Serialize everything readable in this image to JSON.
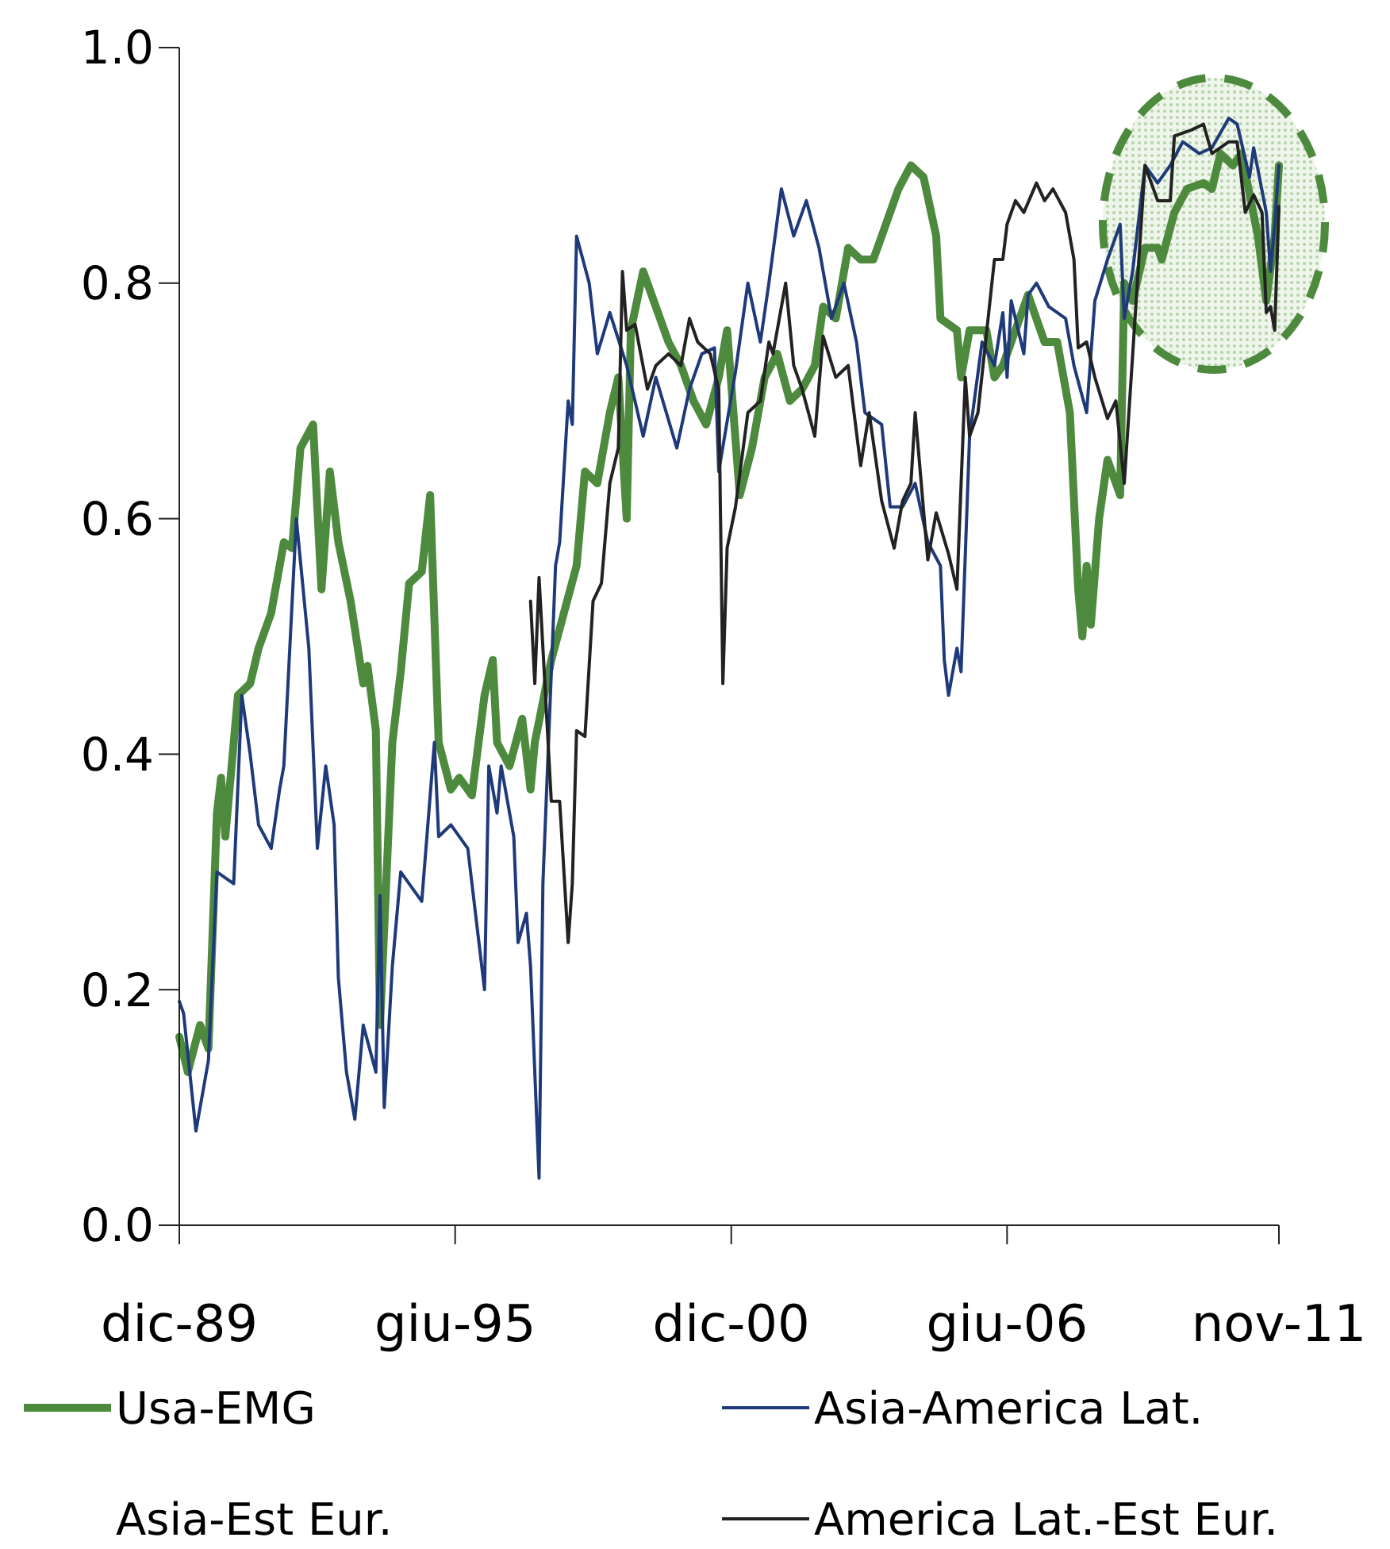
{
  "chart_data": {
    "type": "line",
    "xlim": [
      "1989-12",
      "2011-11"
    ],
    "xticks": [
      {
        "value": "1989-12",
        "label": "dic-89"
      },
      {
        "value": "1995-06",
        "label": "giu-95"
      },
      {
        "value": "2000-12",
        "label": "dic-00"
      },
      {
        "value": "2006-06",
        "label": "giu-06"
      },
      {
        "value": "2011-11",
        "label": "nov-11"
      }
    ],
    "ylim": [
      0,
      1
    ],
    "yticks": [
      {
        "value": 0,
        "label": "0.0"
      },
      0.2,
      0.4,
      0.6,
      0.8,
      {
        "value": 1,
        "label": "1.0"
      }
    ],
    "grid": false,
    "legend": "bottom",
    "series": [
      {
        "name": "Usa-EMG",
        "color": "#4e8a3e",
        "x": [
          "1989-12",
          "1990-02",
          "1990-05",
          "1990-07",
          "1990-09",
          "1990-10",
          "1990-11",
          "1991-02",
          "1991-05",
          "1991-07",
          "1991-10",
          "1992-01",
          "1992-03",
          "1992-05",
          "1992-08",
          "1992-10",
          "1992-12",
          "1993-02",
          "1993-05",
          "1993-08",
          "1993-09",
          "1993-11",
          "1993-12",
          "1994-03",
          "1994-05",
          "1994-07",
          "1994-10",
          "1994-12",
          "1995-02",
          "1995-05",
          "1995-07",
          "1995-10",
          "1996-01",
          "1996-03",
          "1996-04",
          "1996-07",
          "1996-10",
          "1996-12",
          "1997-01",
          "1997-05",
          "1997-08",
          "1997-11",
          "1998-01",
          "1998-04",
          "1998-07",
          "1998-09",
          "1998-11",
          "1998-12",
          "1999-03",
          "1999-06",
          "1999-09",
          "1999-12",
          "2000-03",
          "2000-06",
          "2000-09",
          "2000-11",
          "2001-02",
          "2001-05",
          "2001-08",
          "2001-11",
          "2002-02",
          "2002-05",
          "2002-08",
          "2002-10",
          "2003-01",
          "2003-04",
          "2003-07",
          "2003-10",
          "2004-01",
          "2004-04",
          "2004-07",
          "2004-10",
          "2005-01",
          "2005-02",
          "2005-06",
          "2005-07",
          "2005-09",
          "2006-01",
          "2006-03",
          "2006-05",
          "2006-11",
          "2007-03",
          "2007-06",
          "2007-09",
          "2007-11",
          "2007-12",
          "2008-01",
          "2008-02",
          "2008-04",
          "2008-06",
          "2008-09",
          "2008-10",
          "2008-12",
          "2009-03",
          "2009-06",
          "2009-07",
          "2009-10",
          "2010-01",
          "2010-05",
          "2010-07",
          "2010-09",
          "2010-12",
          "2011-02",
          "2011-06",
          "2011-08",
          "2011-10",
          "2011-11"
        ],
        "values": [
          0.16,
          0.13,
          0.17,
          0.15,
          0.35,
          0.38,
          0.33,
          0.45,
          0.46,
          0.49,
          0.52,
          0.58,
          0.575,
          0.66,
          0.68,
          0.54,
          0.64,
          0.58,
          0.53,
          0.46,
          0.475,
          0.42,
          0.17,
          0.41,
          0.47,
          0.545,
          0.555,
          0.62,
          0.41,
          0.37,
          0.38,
          0.365,
          0.45,
          0.48,
          0.41,
          0.39,
          0.43,
          0.37,
          0.41,
          0.48,
          0.52,
          0.56,
          0.64,
          0.63,
          0.69,
          0.72,
          0.6,
          0.76,
          0.81,
          0.78,
          0.75,
          0.73,
          0.7,
          0.68,
          0.72,
          0.76,
          0.62,
          0.66,
          0.72,
          0.74,
          0.7,
          0.71,
          0.73,
          0.78,
          0.77,
          0.83,
          0.82,
          0.82,
          0.85,
          0.88,
          0.9,
          0.89,
          0.84,
          0.77,
          0.76,
          0.72,
          0.76,
          0.76,
          0.72,
          0.73,
          0.79,
          0.75,
          0.75,
          0.69,
          0.54,
          0.5,
          0.56,
          0.51,
          0.6,
          0.65,
          0.62,
          0.8,
          0.785,
          0.83,
          0.83,
          0.82,
          0.86,
          0.88,
          0.885,
          0.88,
          0.91,
          0.9,
          0.91,
          0.84,
          0.785,
          0.84,
          0.9
        ]
      },
      {
        "name": "Asia-America Lat.",
        "color": "#1f3a7a",
        "x": [
          "1989-12",
          "1990-01",
          "1990-04",
          "1990-07",
          "1990-09",
          "1991-01",
          "1991-03",
          "1991-05",
          "1991-07",
          "1991-10",
          "1991-12",
          "1992-01",
          "1992-04",
          "1992-07",
          "1992-09",
          "1992-11",
          "1993-01",
          "1993-02",
          "1993-04",
          "1993-06",
          "1993-08",
          "1993-11",
          "1993-12",
          "1994-01",
          "1994-03",
          "1994-05",
          "1994-10",
          "1995-01",
          "1995-02",
          "1995-05",
          "1995-09",
          "1996-01",
          "1996-02",
          "1996-04",
          "1996-05",
          "1996-08",
          "1996-09",
          "1996-11",
          "1996-12",
          "1997-02",
          "1997-03",
          "1997-06",
          "1997-07",
          "1997-09",
          "1997-10",
          "1997-11",
          "1998-02",
          "1998-04",
          "1998-07",
          "1998-11",
          "1999-03",
          "1999-06",
          "1999-11",
          "2000-02",
          "2000-05",
          "2000-08",
          "2000-09",
          "2001-01",
          "2001-04",
          "2001-07",
          "2001-09",
          "2001-12",
          "2002-03",
          "2002-06",
          "2002-09",
          "2002-12",
          "2003-03",
          "2003-06",
          "2003-08",
          "2003-12",
          "2004-02",
          "2004-05",
          "2004-08",
          "2004-11",
          "2005-02",
          "2005-03",
          "2005-04",
          "2005-06",
          "2005-07",
          "2005-09",
          "2005-12",
          "2006-03",
          "2006-05",
          "2006-06",
          "2006-07",
          "2006-10",
          "2006-11",
          "2007-01",
          "2007-04",
          "2007-08",
          "2007-10",
          "2008-01",
          "2008-03",
          "2008-06",
          "2008-09",
          "2008-10",
          "2008-12",
          "2009-03",
          "2009-06",
          "2009-09",
          "2009-12",
          "2010-04",
          "2010-07",
          "2010-11",
          "2011-01",
          "2011-04",
          "2011-05",
          "2011-08",
          "2011-09",
          "2011-10",
          "2011-11"
        ],
        "values": [
          0.19,
          0.18,
          0.08,
          0.14,
          0.3,
          0.29,
          0.45,
          0.4,
          0.34,
          0.32,
          0.37,
          0.39,
          0.6,
          0.49,
          0.32,
          0.39,
          0.34,
          0.21,
          0.13,
          0.09,
          0.17,
          0.13,
          0.28,
          0.1,
          0.22,
          0.3,
          0.275,
          0.41,
          0.33,
          0.34,
          0.32,
          0.2,
          0.39,
          0.35,
          0.39,
          0.33,
          0.24,
          0.265,
          0.22,
          0.04,
          0.29,
          0.56,
          0.58,
          0.7,
          0.68,
          0.84,
          0.8,
          0.74,
          0.775,
          0.73,
          0.67,
          0.72,
          0.66,
          0.71,
          0.74,
          0.745,
          0.64,
          0.725,
          0.8,
          0.75,
          0.8,
          0.88,
          0.84,
          0.87,
          0.83,
          0.77,
          0.8,
          0.75,
          0.69,
          0.68,
          0.61,
          0.61,
          0.63,
          0.58,
          0.56,
          0.48,
          0.45,
          0.49,
          0.47,
          0.67,
          0.75,
          0.73,
          0.775,
          0.72,
          0.785,
          0.74,
          0.79,
          0.8,
          0.78,
          0.77,
          0.73,
          0.69,
          0.785,
          0.82,
          0.85,
          0.77,
          0.81,
          0.9,
          0.885,
          0.9,
          0.92,
          0.91,
          0.915,
          0.94,
          0.935,
          0.89,
          0.915,
          0.86,
          0.81,
          0.85,
          0.9
        ]
      },
      {
        "name": "Asia-Est Eur."
      },
      {
        "name": "America Lat.-Est Eur.",
        "color": "#222222",
        "x": [
          "1996-12",
          "1997-01",
          "1997-02",
          "1997-05",
          "1997-07",
          "1997-09",
          "1997-10",
          "1997-11",
          "1998-01",
          "1998-03",
          "1998-05",
          "1998-07",
          "1998-09",
          "1998-10",
          "1998-11",
          "1999-01",
          "1999-04",
          "1999-06",
          "1999-09",
          "1999-12",
          "2000-02",
          "2000-04",
          "2000-07",
          "2000-09",
          "2000-10",
          "2000-11",
          "2001-01",
          "2001-04",
          "2001-07",
          "2001-09",
          "2001-10",
          "2002-01",
          "2002-03",
          "2002-05",
          "2002-08",
          "2002-10",
          "2003-01",
          "2003-04",
          "2003-07",
          "2003-09",
          "2003-12",
          "2004-03",
          "2004-05",
          "2004-07",
          "2004-08",
          "2004-11",
          "2005-01",
          "2005-04",
          "2005-06",
          "2005-08",
          "2005-09",
          "2005-11",
          "2006-03",
          "2006-05",
          "2006-06",
          "2006-08",
          "2006-10",
          "2007-01",
          "2007-03",
          "2007-05",
          "2007-08",
          "2007-10",
          "2007-11",
          "2008-01",
          "2008-03",
          "2008-06",
          "2008-08",
          "2008-10",
          "2008-11",
          "2009-03",
          "2009-06",
          "2009-09",
          "2009-10",
          "2010-02",
          "2010-05",
          "2010-07",
          "2010-11",
          "2011-01",
          "2011-03",
          "2011-05",
          "2011-07",
          "2011-08",
          "2011-09",
          "2011-10",
          "2011-11"
        ],
        "values": [
          0.53,
          0.46,
          0.55,
          0.36,
          0.36,
          0.24,
          0.29,
          0.42,
          0.415,
          0.53,
          0.545,
          0.63,
          0.66,
          0.81,
          0.76,
          0.765,
          0.71,
          0.73,
          0.74,
          0.73,
          0.77,
          0.75,
          0.74,
          0.71,
          0.46,
          0.575,
          0.61,
          0.69,
          0.7,
          0.75,
          0.74,
          0.8,
          0.73,
          0.71,
          0.67,
          0.755,
          0.72,
          0.73,
          0.645,
          0.69,
          0.615,
          0.575,
          0.615,
          0.63,
          0.69,
          0.565,
          0.605,
          0.57,
          0.54,
          0.72,
          0.67,
          0.69,
          0.82,
          0.82,
          0.85,
          0.87,
          0.86,
          0.885,
          0.87,
          0.88,
          0.86,
          0.82,
          0.745,
          0.75,
          0.72,
          0.685,
          0.7,
          0.63,
          0.685,
          0.9,
          0.87,
          0.87,
          0.925,
          0.93,
          0.935,
          0.91,
          0.92,
          0.92,
          0.86,
          0.875,
          0.86,
          0.775,
          0.78,
          0.76,
          0.865
        ]
      }
    ]
  }
}
